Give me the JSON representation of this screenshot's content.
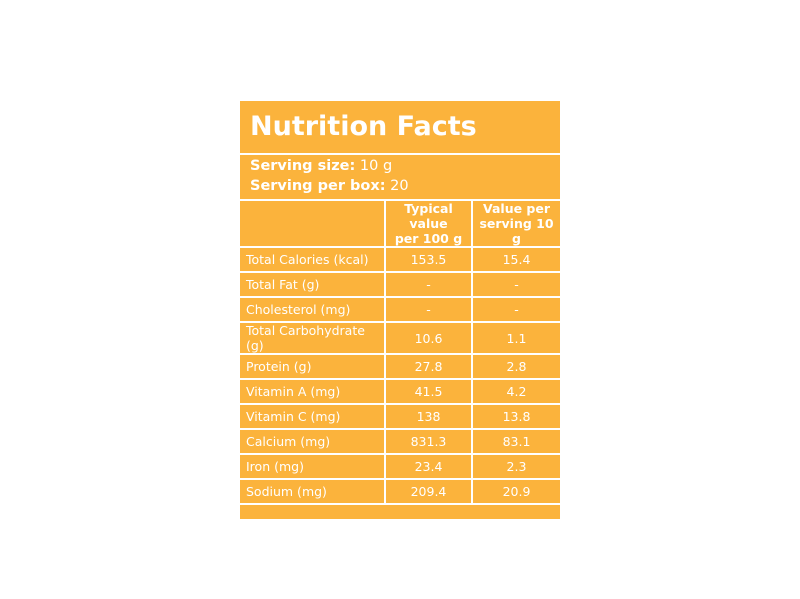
{
  "title": "Nutrition Facts",
  "serving": {
    "size_label": "Serving size:",
    "size_value": "10 g",
    "per_box_label": "Serving per box:",
    "per_box_value": "20"
  },
  "columns": {
    "per_100g_line1": "Typical value",
    "per_100g_line2": "per 100 g",
    "per_serving_line1": "Value per",
    "per_serving_line2": "serving 10 g"
  },
  "rows": [
    {
      "name": "Total Calories (kcal)",
      "per_100g": "153.5",
      "per_serving": "15.4"
    },
    {
      "name": "Total Fat (g)",
      "per_100g": "-",
      "per_serving": "-"
    },
    {
      "name": "Cholesterol (mg)",
      "per_100g": "-",
      "per_serving": "-"
    },
    {
      "name": "Total Carbohydrate (g)",
      "per_100g": "10.6",
      "per_serving": "1.1"
    },
    {
      "name": "Protein (g)",
      "per_100g": "27.8",
      "per_serving": "2.8"
    },
    {
      "name": "Vitamin A (mg)",
      "per_100g": "41.5",
      "per_serving": "4.2"
    },
    {
      "name": "Vitamin C (mg)",
      "per_100g": "138",
      "per_serving": "13.8"
    },
    {
      "name": "Calcium (mg)",
      "per_100g": "831.3",
      "per_serving": "83.1"
    },
    {
      "name": "Iron (mg)",
      "per_100g": "23.4",
      "per_serving": "2.3"
    },
    {
      "name": "Sodium (mg)",
      "per_100g": "209.4",
      "per_serving": "20.9"
    }
  ],
  "colors": {
    "background": "#fbb33c",
    "text": "#ffffff"
  }
}
